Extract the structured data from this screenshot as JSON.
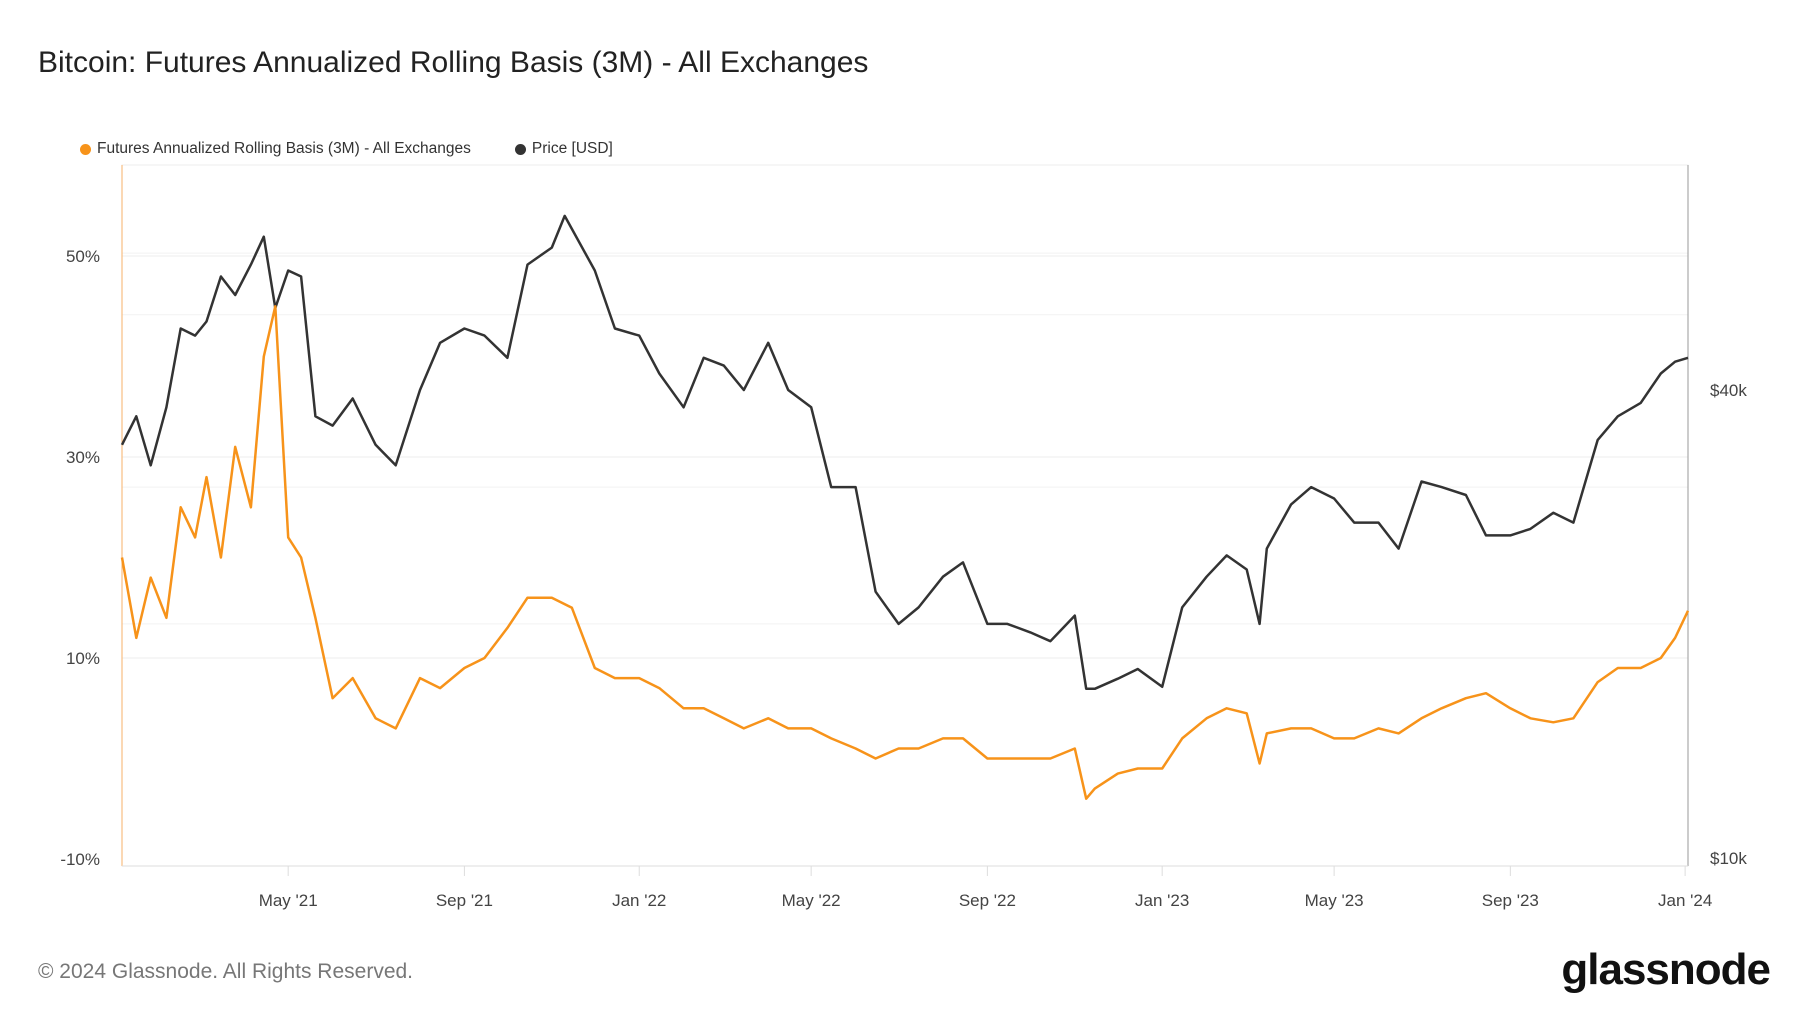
{
  "title": "Bitcoin: Futures Annualized Rolling Basis (3M) - All Exchanges",
  "footer": "© 2024 Glassnode. All Rights Reserved.",
  "logo": "glassnode",
  "chart_data": {
    "type": "line",
    "title": "Bitcoin: Futures Annualized Rolling Basis (3M) - All Exchanges",
    "legend_placement": "top-left",
    "grid": true,
    "xlim": [
      "2021-01-05",
      "2024-01-03"
    ],
    "x_ticks": [
      "May '21",
      "Sep '21",
      "Jan '22",
      "May '22",
      "Sep '22",
      "Jan '23",
      "May '23",
      "Sep '23",
      "Jan '24"
    ],
    "x_tick_dates": [
      "2021-05-01",
      "2021-09-01",
      "2022-01-01",
      "2022-05-01",
      "2022-09-01",
      "2023-01-01",
      "2023-05-01",
      "2023-09-01",
      "2024-01-01"
    ],
    "y_left": {
      "ticks": [
        "50%",
        "30%",
        "10%",
        "-10%"
      ],
      "tick_values": [
        50,
        30,
        10,
        -10
      ],
      "range": [
        -10,
        50
      ]
    },
    "y_right": {
      "scale": "log",
      "ticks": [
        "$40k",
        "$10k"
      ],
      "tick_values": [
        40000,
        10000
      ]
    },
    "series": [
      {
        "name": "Futures Annualized Rolling Basis (3M) - All Exchanges",
        "axis": "left",
        "color": "#f7931a",
        "x": [
          "2021-01-05",
          "2021-01-15",
          "2021-01-25",
          "2021-02-05",
          "2021-02-15",
          "2021-02-25",
          "2021-03-05",
          "2021-03-15",
          "2021-03-25",
          "2021-04-05",
          "2021-04-14",
          "2021-04-22",
          "2021-05-01",
          "2021-05-10",
          "2021-05-20",
          "2021-06-01",
          "2021-06-15",
          "2021-07-01",
          "2021-07-15",
          "2021-08-01",
          "2021-08-15",
          "2021-09-01",
          "2021-09-15",
          "2021-10-01",
          "2021-10-15",
          "2021-11-01",
          "2021-11-15",
          "2021-12-01",
          "2021-12-15",
          "2022-01-01",
          "2022-01-15",
          "2022-02-01",
          "2022-02-15",
          "2022-03-01",
          "2022-03-15",
          "2022-04-01",
          "2022-04-15",
          "2022-05-01",
          "2022-05-15",
          "2022-06-01",
          "2022-06-15",
          "2022-07-01",
          "2022-07-15",
          "2022-08-01",
          "2022-08-15",
          "2022-09-01",
          "2022-09-15",
          "2022-10-01",
          "2022-10-15",
          "2022-11-01",
          "2022-11-09",
          "2022-11-15",
          "2022-12-01",
          "2022-12-15",
          "2023-01-01",
          "2023-01-15",
          "2023-02-01",
          "2023-02-15",
          "2023-03-01",
          "2023-03-10",
          "2023-03-15",
          "2023-04-01",
          "2023-04-15",
          "2023-05-01",
          "2023-05-15",
          "2023-06-01",
          "2023-06-15",
          "2023-07-01",
          "2023-07-15",
          "2023-08-01",
          "2023-08-15",
          "2023-09-01",
          "2023-09-15",
          "2023-10-01",
          "2023-10-15",
          "2023-11-01",
          "2023-11-15",
          "2023-12-01",
          "2023-12-15",
          "2023-12-25",
          "2024-01-03"
        ],
        "values": [
          20,
          12,
          18,
          14,
          25,
          22,
          28,
          20,
          31,
          25,
          40,
          45,
          22,
          20,
          14,
          6,
          8,
          4,
          3,
          8,
          7,
          9,
          10,
          13,
          16,
          16,
          15,
          9,
          8,
          8,
          7,
          5,
          5,
          4,
          3,
          4,
          3,
          3,
          2,
          1,
          0,
          1,
          1,
          2,
          2,
          0,
          0,
          0,
          0,
          1,
          -4,
          -3,
          -1.5,
          -1,
          -1,
          2,
          4,
          5,
          4.5,
          -0.5,
          2.5,
          3,
          3,
          2,
          2,
          3,
          2.5,
          4,
          5,
          6,
          6.5,
          5,
          4,
          3.6,
          4,
          7.6,
          9,
          9,
          10,
          12,
          14.7
        ]
      },
      {
        "name": "Price [USD]",
        "axis": "right",
        "color": "#333333",
        "x": [
          "2021-01-05",
          "2021-01-15",
          "2021-01-25",
          "2021-02-05",
          "2021-02-15",
          "2021-02-25",
          "2021-03-05",
          "2021-03-15",
          "2021-03-25",
          "2021-04-05",
          "2021-04-14",
          "2021-04-22",
          "2021-05-01",
          "2021-05-10",
          "2021-05-20",
          "2021-06-01",
          "2021-06-15",
          "2021-07-01",
          "2021-07-15",
          "2021-08-01",
          "2021-08-15",
          "2021-09-01",
          "2021-09-15",
          "2021-10-01",
          "2021-10-15",
          "2021-11-01",
          "2021-11-10",
          "2021-12-01",
          "2021-12-15",
          "2022-01-01",
          "2022-01-15",
          "2022-02-01",
          "2022-02-15",
          "2022-03-01",
          "2022-03-15",
          "2022-04-01",
          "2022-04-15",
          "2022-05-01",
          "2022-05-15",
          "2022-06-01",
          "2022-06-15",
          "2022-07-01",
          "2022-07-15",
          "2022-08-01",
          "2022-08-15",
          "2022-09-01",
          "2022-09-15",
          "2022-10-01",
          "2022-10-15",
          "2022-11-01",
          "2022-11-09",
          "2022-11-15",
          "2022-12-01",
          "2022-12-15",
          "2023-01-01",
          "2023-01-15",
          "2023-02-01",
          "2023-02-15",
          "2023-03-01",
          "2023-03-10",
          "2023-03-15",
          "2023-04-01",
          "2023-04-15",
          "2023-05-01",
          "2023-05-15",
          "2023-06-01",
          "2023-06-15",
          "2023-07-01",
          "2023-07-15",
          "2023-08-01",
          "2023-08-15",
          "2023-09-01",
          "2023-09-15",
          "2023-10-01",
          "2023-10-15",
          "2023-11-01",
          "2023-11-15",
          "2023-12-01",
          "2023-12-15",
          "2023-12-25",
          "2024-01-03"
        ],
        "values": [
          34000,
          37000,
          32000,
          38000,
          48000,
          47000,
          49000,
          56000,
          53000,
          58000,
          63000,
          51000,
          57000,
          56000,
          37000,
          36000,
          39000,
          34000,
          32000,
          40000,
          46000,
          48000,
          47000,
          44000,
          58000,
          61000,
          67000,
          57000,
          48000,
          47000,
          42000,
          38000,
          44000,
          43000,
          40000,
          46000,
          40000,
          38000,
          30000,
          30000,
          22000,
          20000,
          21000,
          23000,
          24000,
          20000,
          20000,
          19500,
          19000,
          20500,
          16500,
          16500,
          17000,
          17500,
          16600,
          21000,
          23000,
          24500,
          23500,
          20000,
          25000,
          28500,
          30000,
          29000,
          27000,
          27000,
          25000,
          30500,
          30000,
          29300,
          26000,
          26000,
          26500,
          27800,
          27000,
          34500,
          37000,
          38500,
          42000,
          43500,
          44000
        ]
      }
    ]
  }
}
